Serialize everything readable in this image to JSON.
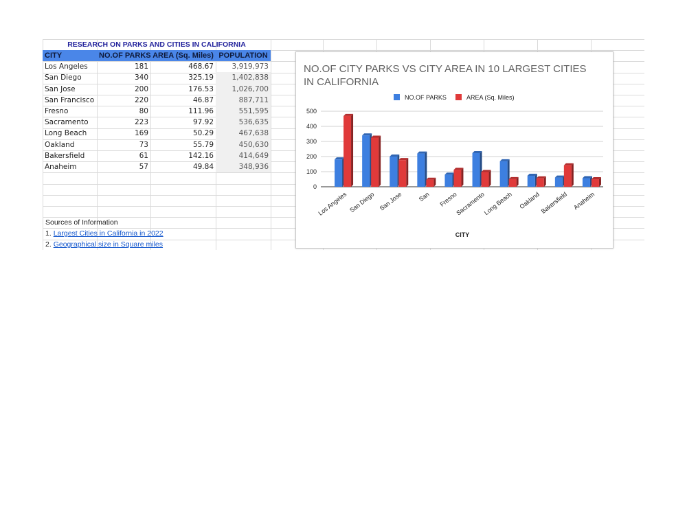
{
  "sheet": {
    "title": "RESEARCH ON PARKS AND CITIES IN CALIFORNIA",
    "headers": [
      "CITY",
      "NO.OF PARKS",
      "AREA (Sq. Miles)",
      "POPULATION"
    ],
    "rows": [
      [
        "Los Angeles",
        "181",
        "468.67",
        "3,919,973"
      ],
      [
        "San Diego",
        "340",
        "325.19",
        "1,402,838"
      ],
      [
        "San Jose",
        "200",
        "176.53",
        "1,026,700"
      ],
      [
        "San Francisco",
        "220",
        "46.87",
        "887,711"
      ],
      [
        "Fresno",
        "80",
        "111.96",
        "551,595"
      ],
      [
        "Sacramento",
        "223",
        "97.92",
        "536,635"
      ],
      [
        "Long Beach",
        "169",
        "50.29",
        "467,638"
      ],
      [
        "Oakland",
        "73",
        "55.79",
        "450,630"
      ],
      [
        "Bakersfield",
        "61",
        "142.16",
        "414,649"
      ],
      [
        "Anaheim",
        "57",
        "49.84",
        "348,936"
      ]
    ],
    "sources_label": "Sources of Information",
    "sources": [
      {
        "prefix": "1. ",
        "link": "Largest Cities in California in 2022"
      },
      {
        "prefix": "2. ",
        "link": "Geographical size in Square miles"
      }
    ]
  },
  "chart_data": {
    "type": "bar",
    "title_line1": "NO.OF CITY PARKS VS CITY AREA IN 10 LARGEST CITIES",
    "title_line2": "IN CALIFORNIA",
    "xlabel": "CITY",
    "ylabel": "",
    "ylim": [
      0,
      500
    ],
    "yticks": [
      0,
      100,
      200,
      300,
      400,
      500
    ],
    "categories": [
      "Los Angeles",
      "San Diego",
      "San Jose",
      "San",
      "Fresno",
      "Sacramento",
      "Long Beach",
      "Oakland",
      "Bakersfield",
      "Anaheim"
    ],
    "series": [
      {
        "name": "NO.OF PARKS",
        "color": "#3d7fe0",
        "values": [
          181,
          340,
          200,
          220,
          80,
          223,
          169,
          73,
          61,
          57
        ]
      },
      {
        "name": "AREA (Sq. Miles)",
        "color": "#e03a3a",
        "values": [
          468.67,
          325.19,
          176.53,
          46.87,
          111.96,
          97.92,
          50.29,
          55.79,
          142.16,
          49.84
        ]
      }
    ],
    "legend_position": "top",
    "grid": true
  }
}
